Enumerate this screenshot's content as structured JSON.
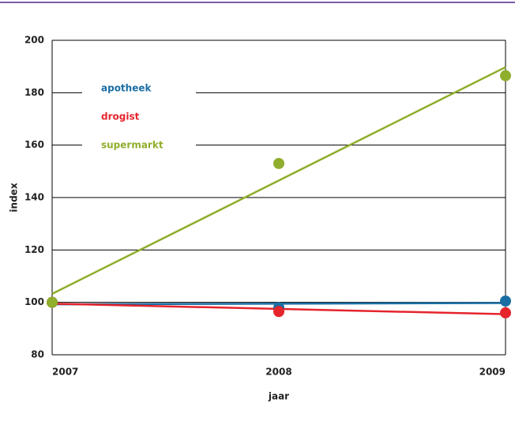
{
  "chart_data": {
    "type": "scatter",
    "trendline": true,
    "x": [
      2007,
      2008,
      2009
    ],
    "xlim": [
      2007,
      2009
    ],
    "xticks": [
      2007,
      2008,
      2009
    ],
    "ylim": [
      80,
      200
    ],
    "yticks": [
      80,
      100,
      120,
      140,
      160,
      180,
      200
    ],
    "xlabel": "jaar",
    "ylabel": "index",
    "grid": true,
    "series": [
      {
        "name": "apotheek",
        "color": "#1a6ea3",
        "values": [
          100,
          98,
          100.5
        ]
      },
      {
        "name": "drogist",
        "color": "#e5242c",
        "values": [
          100,
          96.5,
          96
        ]
      },
      {
        "name": "supermarkt",
        "color": "#8fae2c",
        "values": [
          100,
          153,
          186.5
        ]
      }
    ]
  }
}
